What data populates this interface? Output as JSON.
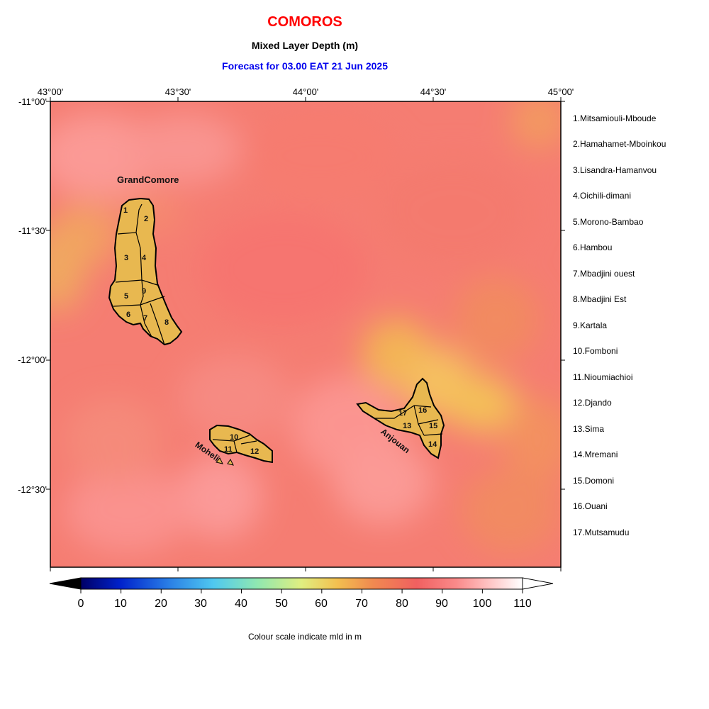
{
  "header": {
    "country": "COMOROS",
    "variable": "Mixed Layer Depth (m)",
    "forecast": "Forecast for  03.00 EAT 21 Jun 2025"
  },
  "axes": {
    "x_ticks": [
      "43°00'",
      "43°30'",
      "44°00'",
      "44°30'",
      "45°00'"
    ],
    "y_ticks": [
      "-11°00'",
      "-11°30'",
      "-12°00'",
      "-12°30'"
    ]
  },
  "islands": {
    "grand_comore": "GrandComore",
    "moheli": "Moheli",
    "anjouan": "Anjouan"
  },
  "districts": [
    "1.Mitsamiouli-Mboude",
    "2.Hamahamet-Mboinkou",
    "3.Lisandra-Hamanvou",
    "4.Oichili-dimani",
    "5.Morono-Bambao",
    "6.Hambou",
    "7.Mbadjini ouest",
    "8.Mbadjini Est",
    "9.Kartala",
    "10.Fomboni",
    "11.Nioumiachioi",
    "12.Djando",
    "13.Sima",
    "14.Mremani",
    "15.Domoni",
    "16.Ouani",
    "17.Mutsamudu"
  ],
  "district_numbers": [
    "1",
    "2",
    "3",
    "4",
    "5",
    "6",
    "7",
    "8",
    "9",
    "10",
    "11",
    "12",
    "13",
    "14",
    "15",
    "16",
    "17"
  ],
  "colorbar": {
    "labels": [
      "0",
      "10",
      "20",
      "30",
      "40",
      "50",
      "60",
      "70",
      "80",
      "90",
      "100",
      "110"
    ],
    "caption": "Colour scale indicate mld in m",
    "colors": [
      "#000066",
      "#0022cc",
      "#2a7fe6",
      "#4fc8f0",
      "#90e8b0",
      "#e0ee80",
      "#f3c050",
      "#f08a50",
      "#f06060",
      "#fa8a8a",
      "#ffc8c8",
      "#ffffff"
    ]
  },
  "colors": {
    "ocean_base": "#f57d72",
    "land": "#e8b850",
    "title_red": "#ff0000",
    "forecast_blue": "#0000ee"
  }
}
